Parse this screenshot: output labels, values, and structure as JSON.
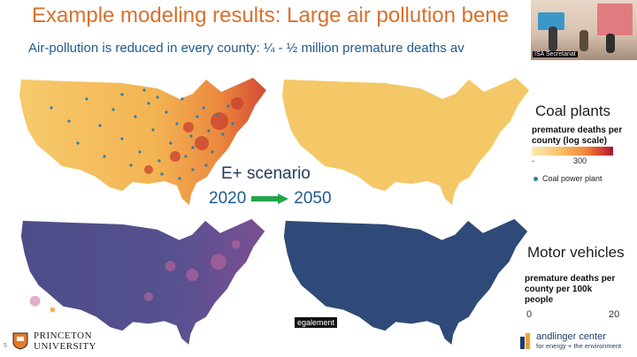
{
  "slide": {
    "title": "Example modeling results: Large air pollution bene",
    "subtitle": "Air-pollution is reduced in every county: ¼ - ½ million premature deaths av",
    "number": "5"
  },
  "scenario": {
    "label": "E+ scenario",
    "year_start": "2020",
    "year_end": "2050"
  },
  "coal_legend": {
    "title": "Coal plants",
    "subtitle_line1": "premature deaths per",
    "subtitle_line2": "county (log scale)",
    "scale_min": "-",
    "scale_max": "300",
    "dot_label": "Coal power plant",
    "colors": [
      "#f9e3a7",
      "#f7c267",
      "#ef8a3c",
      "#d9432f",
      "#a3173a"
    ]
  },
  "motor_legend": {
    "title": "Motor vehicles",
    "subtitle_line1": "premature deaths per",
    "subtitle_line2": "county per 100k",
    "subtitle_line3": "people",
    "scale_min": "0",
    "scale_max": "20"
  },
  "caption": "egalement",
  "logos": {
    "princeton_line1": "PRINCETON",
    "princeton_line2": "UNIVERSITY",
    "andlinger_line1": "andlinger center",
    "andlinger_line2": "for energy + the environment"
  },
  "video": {
    "banner": "ISA Secretariat"
  },
  "colors": {
    "title": "#d8702b",
    "subtitle": "#1f5a8c",
    "map_coal_2020": "#f4c35f",
    "map_coal_2050": "#f5c866",
    "map_motor_2020": "#4a4b86",
    "map_motor_2050": "#2e4a79",
    "arrow": "#23a54b"
  }
}
